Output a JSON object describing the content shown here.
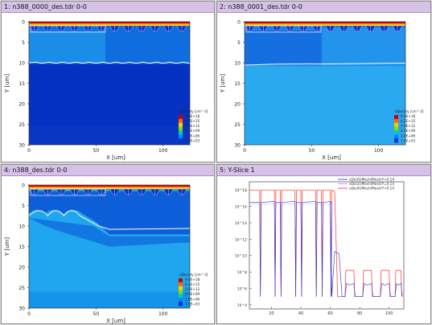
{
  "panels": [
    {
      "title": "1: n388_0000_des.tdr 0-0"
    },
    {
      "title": "2: n388_0001_des.tdr 0-0"
    },
    {
      "title": "4: n388_des.tdr 0-0"
    },
    {
      "title": "5: Y-Slice 1"
    }
  ],
  "contour_plot": {
    "ylabel": "Y [um]",
    "xlabel": "X [um]",
    "x_ticks": [
      "0",
      "50",
      "100"
    ],
    "y_ticks": [
      "0",
      "5",
      "10",
      "15",
      "20",
      "25",
      "30"
    ],
    "legend_title": "eDensity [cm^-3]",
    "legend_values": [
      "9.8E+18",
      "6.2E+15",
      "3.9E+12",
      "2.5E+09",
      "1.6E+06",
      "1.0E+03"
    ],
    "colors": [
      "#cc0000",
      "#ff6600",
      "#ffcc00",
      "#88dd00",
      "#00c8c8",
      "#0088ff",
      "#0033cc"
    ]
  },
  "slice_plot": {
    "legend": [
      "eDe(0)/Mesh/Mesh/Y=0.14",
      "eDe(2)/Mesh/Mesh/Y=0.14",
      "eDe(4)/Mesh/Mesh/Y=0.14"
    ],
    "x_ticks": [
      "20",
      "40",
      "60",
      "80",
      "100"
    ],
    "y_ticks": [
      "10^18",
      "10^16",
      "10^14",
      "10^12",
      "10^10",
      "10^8",
      "10^6",
      "10^4"
    ],
    "series_colors": [
      "#3030d0",
      "#9090ff",
      "#ff3030"
    ]
  }
}
